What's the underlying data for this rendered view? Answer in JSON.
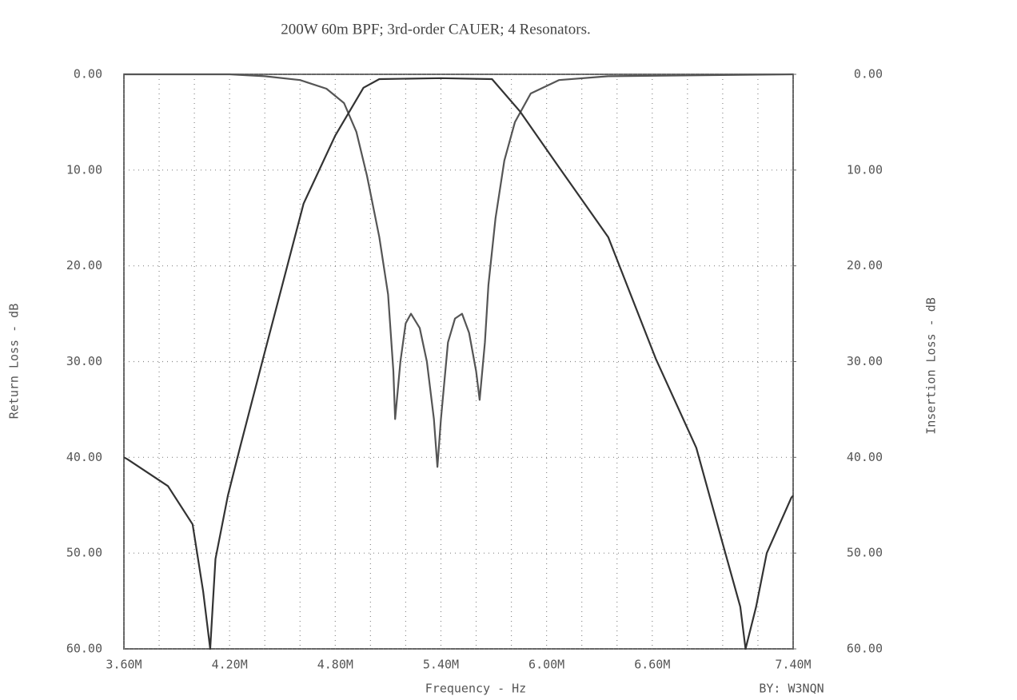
{
  "chart_data": {
    "type": "line",
    "title": "200W 60m BPF; 3rd-order CAUER; 4 Resonators.",
    "x_label": "Frequency - Hz",
    "y_label": "Return Loss - dB",
    "y2_label": "Insertion Loss - dB",
    "credit": "BY: W3NQN",
    "xlim": [
      3.6,
      7.4
    ],
    "xticks": [
      {
        "value": 3.6,
        "label": "3.60M"
      },
      {
        "value": 4.2,
        "label": "4.20M"
      },
      {
        "value": 4.8,
        "label": "4.80M"
      },
      {
        "value": 5.4,
        "label": "5.40M"
      },
      {
        "value": 6.0,
        "label": "6.00M"
      },
      {
        "value": 6.6,
        "label": "6.60M"
      },
      {
        "value": 7.4,
        "label": "7.40M"
      }
    ],
    "x_minor_grid": [
      3.8,
      4.0,
      4.4,
      4.6,
      5.0,
      5.2,
      5.6,
      5.8,
      6.2,
      6.4,
      6.8,
      7.0,
      7.2
    ],
    "ylim": [
      60,
      0
    ],
    "yticks": [
      {
        "value": 0,
        "label": "0.00"
      },
      {
        "value": 10,
        "label": "10.00"
      },
      {
        "value": 20,
        "label": "20.00"
      },
      {
        "value": 30,
        "label": "30.00"
      },
      {
        "value": 40,
        "label": "40.00"
      },
      {
        "value": 50,
        "label": "50.00"
      },
      {
        "value": 60,
        "label": "60.00"
      }
    ],
    "y2lim": [
      60,
      0
    ],
    "y2ticks": [
      {
        "value": 0,
        "label": "0.00"
      },
      {
        "value": 10,
        "label": "10.00"
      },
      {
        "value": 20,
        "label": "20.00"
      },
      {
        "value": 30,
        "label": "30.00"
      },
      {
        "value": 40,
        "label": "40.00"
      },
      {
        "value": 50,
        "label": "50.00"
      },
      {
        "value": 60,
        "label": "60.00"
      }
    ],
    "grid": true,
    "series": [
      {
        "color": "#555555",
        "x": [
          3.6,
          4.2,
          4.4,
          4.6,
          4.75,
          4.85,
          4.92,
          4.98,
          5.05,
          5.1,
          5.13,
          5.14,
          5.17,
          5.2,
          5.23,
          5.28,
          5.32,
          5.36,
          5.38,
          5.4,
          5.44,
          5.48,
          5.52,
          5.56,
          5.6,
          5.62,
          5.65,
          5.67,
          5.71,
          5.76,
          5.82,
          5.91,
          6.07,
          6.35,
          7.4
        ],
        "values": [
          0,
          0,
          0.2,
          0.6,
          1.5,
          3,
          6,
          10.6,
          17,
          23,
          31,
          36,
          30,
          26,
          25,
          26.5,
          30,
          36,
          41,
          36,
          28,
          25.5,
          25,
          27,
          31,
          34,
          28,
          22,
          15,
          9,
          5,
          2,
          0.6,
          0.2,
          0
        ]
      },
      {
        "color": "#333333",
        "axis": "y2",
        "x": [
          3.6,
          3.62,
          3.85,
          3.99,
          4.05,
          4.09,
          4.12,
          4.19,
          4.26,
          4.39,
          4.62,
          4.8,
          4.96,
          5.05,
          5.4,
          5.69,
          5.85,
          6.07,
          6.35,
          6.62,
          6.85,
          7.0,
          7.1,
          7.13,
          7.19,
          7.25,
          7.39,
          7.4
        ],
        "values": [
          40,
          40.2,
          43,
          47,
          54,
          60,
          50.6,
          44,
          38.9,
          29.7,
          13.5,
          6.4,
          1.4,
          0.5,
          0.4,
          0.5,
          3.9,
          9.7,
          17,
          29.7,
          39,
          49,
          55.6,
          60,
          55.6,
          50,
          44.2,
          44
        ]
      }
    ]
  }
}
